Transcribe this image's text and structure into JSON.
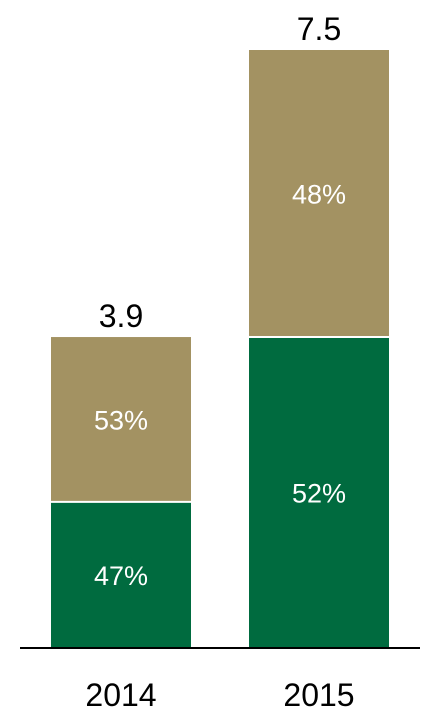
{
  "chart_data": {
    "type": "bar",
    "stacked": true,
    "categories": [
      "2014",
      "2015"
    ],
    "totals": [
      3.9,
      7.5
    ],
    "total_labels": [
      "3.9",
      "7.5"
    ],
    "series": [
      {
        "color": "#006b3f",
        "share": [
          0.47,
          0.52
        ],
        "labels": [
          "47%",
          "52%"
        ]
      },
      {
        "color": "#a39262",
        "share": [
          0.53,
          0.48
        ],
        "labels": [
          "53%",
          "48%"
        ]
      }
    ],
    "ylim": [
      0,
      7.5
    ],
    "grid": false,
    "legend": "none"
  }
}
